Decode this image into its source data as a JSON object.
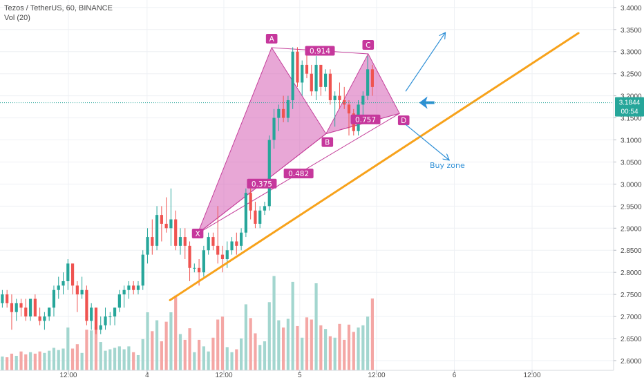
{
  "header": {
    "symbol_line": "Tezos / TetherUS, 60, BINANCE",
    "volume_line": "Vol (20)"
  },
  "colors": {
    "up": "#26a69a",
    "down": "#ef5350",
    "vol_up": "#a3d6cf",
    "vol_down": "#f4a7a5",
    "pattern_fill": "#d65fb4",
    "pattern_stroke": "#c43f9a",
    "pattern_label_bg": "#c6379c",
    "trendline": "#f7a21b",
    "arrow": "#2e8fd6",
    "price_tag": "#26a69a",
    "grid": "#eef0f4"
  },
  "chart_data": {
    "type": "candlestick",
    "y_axis": {
      "ylim": [
        2.578,
        3.417
      ],
      "ticks": [
        2.6,
        2.65,
        2.7,
        2.75,
        2.8,
        2.85,
        2.9,
        2.95,
        3.0,
        3.05,
        3.1,
        3.15,
        3.2,
        3.25,
        3.3,
        3.35,
        3.4
      ],
      "tick_labels": [
        "2.6000",
        "2.6500",
        "2.7000",
        "2.7500",
        "2.8000",
        "2.8500",
        "2.9000",
        "2.9500",
        "3.0000",
        "3.0500",
        "3.1000",
        "3.1500",
        "3.2000",
        "3.2500",
        "3.3000",
        "3.3500",
        "3.4000"
      ]
    },
    "x_axis": {
      "xlim": [
        0,
        131
      ],
      "ticks": [
        {
          "x": 14.6,
          "label": "12:00"
        },
        {
          "x": 31.4,
          "label": "4"
        },
        {
          "x": 47.8,
          "label": "12:00"
        },
        {
          "x": 64.0,
          "label": "5"
        },
        {
          "x": 80.4,
          "label": "12:00"
        },
        {
          "x": 97.0,
          "label": "6"
        },
        {
          "x": 113.6,
          "label": "12:00"
        }
      ]
    },
    "candles": [
      [
        2.73,
        2.76,
        2.72,
        2.75,
        1.9
      ],
      [
        2.75,
        2.76,
        2.72,
        2.73,
        1.8
      ],
      [
        2.73,
        2.75,
        2.67,
        2.71,
        2.3
      ],
      [
        2.71,
        2.74,
        2.69,
        2.73,
        2.0
      ],
      [
        2.73,
        2.74,
        2.7,
        2.72,
        2.6
      ],
      [
        2.72,
        2.74,
        2.69,
        2.7,
        2.2
      ],
      [
        2.7,
        2.74,
        2.69,
        2.74,
        2.5
      ],
      [
        2.74,
        2.75,
        2.7,
        2.7,
        2.3
      ],
      [
        2.7,
        2.72,
        2.68,
        2.69,
        2.6
      ],
      [
        2.69,
        2.71,
        2.67,
        2.7,
        2.4
      ],
      [
        2.7,
        2.72,
        2.69,
        2.72,
        2.7
      ],
      [
        2.72,
        2.77,
        2.7,
        2.76,
        3.1
      ],
      [
        2.76,
        2.79,
        2.74,
        2.77,
        2.8
      ],
      [
        2.77,
        2.8,
        2.75,
        2.78,
        3.0
      ],
      [
        2.78,
        2.83,
        2.76,
        2.82,
        5.9
      ],
      [
        2.82,
        2.82,
        2.75,
        2.77,
        3.0
      ],
      [
        2.77,
        2.78,
        2.71,
        2.75,
        3.6
      ],
      [
        2.75,
        2.79,
        2.74,
        2.76,
        2.4
      ],
      [
        2.76,
        2.77,
        2.68,
        2.69,
        5.6
      ],
      [
        2.69,
        2.73,
        2.67,
        2.72,
        5.5
      ],
      [
        2.72,
        2.72,
        2.66,
        2.67,
        6.0
      ],
      [
        2.67,
        2.7,
        2.66,
        2.68,
        3.9
      ],
      [
        2.68,
        2.72,
        2.67,
        2.7,
        2.7
      ],
      [
        2.7,
        2.71,
        2.68,
        2.7,
        2.9
      ],
      [
        2.7,
        2.72,
        2.68,
        2.72,
        3.1
      ],
      [
        2.72,
        2.76,
        2.71,
        2.75,
        3.3
      ],
      [
        2.75,
        2.77,
        2.72,
        2.76,
        2.9
      ],
      [
        2.76,
        2.78,
        2.74,
        2.77,
        3.3
      ],
      [
        2.77,
        2.78,
        2.75,
        2.76,
        2.5
      ],
      [
        2.76,
        2.78,
        2.75,
        2.77,
        2.1
      ],
      [
        2.77,
        2.85,
        2.76,
        2.84,
        4.3
      ],
      [
        2.84,
        2.9,
        2.82,
        2.88,
        8.0
      ],
      [
        2.88,
        2.92,
        2.84,
        2.86,
        5.4
      ],
      [
        2.86,
        2.95,
        2.85,
        2.93,
        6.9
      ],
      [
        2.93,
        2.95,
        2.87,
        2.91,
        4.0
      ],
      [
        2.91,
        2.97,
        2.89,
        2.9,
        6.7
      ],
      [
        2.9,
        2.99,
        2.86,
        2.92,
        8.0
      ],
      [
        2.92,
        2.94,
        2.85,
        2.86,
        10.3
      ],
      [
        2.86,
        2.9,
        2.84,
        2.88,
        5.0
      ],
      [
        2.88,
        2.9,
        2.83,
        2.86,
        4.2
      ],
      [
        2.86,
        2.87,
        2.78,
        2.81,
        5.8
      ],
      [
        2.81,
        2.82,
        2.8,
        2.81,
        2.5
      ],
      [
        2.81,
        2.83,
        2.77,
        2.8,
        4.2
      ],
      [
        2.8,
        2.86,
        2.79,
        2.85,
        3.3
      ],
      [
        2.85,
        2.89,
        2.84,
        2.88,
        2.6
      ],
      [
        2.88,
        2.89,
        2.85,
        2.86,
        4.5
      ],
      [
        2.86,
        2.95,
        2.82,
        2.84,
        7.0
      ],
      [
        2.84,
        2.86,
        2.8,
        2.83,
        7.4
      ],
      [
        2.83,
        2.87,
        2.81,
        2.85,
        3.2
      ],
      [
        2.85,
        2.88,
        2.84,
        2.87,
        2.5
      ],
      [
        2.87,
        2.89,
        2.84,
        2.86,
        2.9
      ],
      [
        2.86,
        2.9,
        2.85,
        2.89,
        4.4
      ],
      [
        2.89,
        2.99,
        2.88,
        2.98,
        9.1
      ],
      [
        2.98,
        2.99,
        2.92,
        2.94,
        7.2
      ],
      [
        2.94,
        2.96,
        2.9,
        2.91,
        5.1
      ],
      [
        2.91,
        2.95,
        2.9,
        2.94,
        3.5
      ],
      [
        2.94,
        2.96,
        2.93,
        2.95,
        4.0
      ],
      [
        2.95,
        3.11,
        2.94,
        3.1,
        9.4
      ],
      [
        3.1,
        3.17,
        3.08,
        3.15,
        13.0
      ],
      [
        3.15,
        3.18,
        3.12,
        3.17,
        6.9
      ],
      [
        3.17,
        3.2,
        3.14,
        3.15,
        5.9
      ],
      [
        3.15,
        3.2,
        3.14,
        3.19,
        7.1
      ],
      [
        3.19,
        3.31,
        3.17,
        3.3,
        12.2
      ],
      [
        3.3,
        3.31,
        3.22,
        3.23,
        6.1
      ],
      [
        3.23,
        3.28,
        3.2,
        3.27,
        4.5
      ],
      [
        3.27,
        3.3,
        3.24,
        3.25,
        7.3
      ],
      [
        3.25,
        3.27,
        3.2,
        3.21,
        7.0
      ],
      [
        3.21,
        3.29,
        3.19,
        3.27,
        12.0
      ],
      [
        3.27,
        3.27,
        3.2,
        3.22,
        6.2
      ],
      [
        3.22,
        3.26,
        3.21,
        3.25,
        5.7
      ],
      [
        3.25,
        3.26,
        3.18,
        3.19,
        4.7
      ],
      [
        3.19,
        3.21,
        3.13,
        3.2,
        4.5
      ],
      [
        3.2,
        3.23,
        3.17,
        3.19,
        6.4
      ],
      [
        3.19,
        3.22,
        3.17,
        3.18,
        4.2
      ],
      [
        3.18,
        3.19,
        3.11,
        3.16,
        6.3
      ],
      [
        3.16,
        3.17,
        3.11,
        3.12,
        5.3
      ],
      [
        3.12,
        3.19,
        3.11,
        3.18,
        5.9
      ],
      [
        3.18,
        3.21,
        3.14,
        3.2,
        6.2
      ],
      [
        3.2,
        3.29,
        3.19,
        3.26,
        7.4
      ],
      [
        3.26,
        3.27,
        3.2,
        3.22,
        9.9
      ]
    ],
    "pattern": {
      "name": "Harmonic XABCD",
      "points": {
        "X": [
          42.2,
          2.888
        ],
        "A": [
          58.0,
          3.309
        ],
        "B": [
          69.6,
          3.114
        ],
        "C": [
          78.6,
          3.295
        ],
        "D": [
          85.3,
          3.16
        ]
      },
      "ratio_labels": [
        {
          "text": "0.914",
          "between": "A-C"
        },
        {
          "text": "0.757",
          "between": "B-D"
        },
        {
          "text": "0.375",
          "between": "X-B"
        },
        {
          "text": "0.482",
          "between": "X-D"
        }
      ],
      "point_labels": [
        "X",
        "A",
        "B",
        "C",
        "D"
      ]
    },
    "trendline": {
      "start": [
        36.3,
        2.737
      ],
      "end": [
        123.5,
        3.342
      ]
    },
    "arrows": [
      {
        "from": [
          86.6,
          3.21
        ],
        "to": [
          95.0,
          3.342
        ]
      },
      {
        "from": [
          86.6,
          3.135
        ],
        "to": [
          95.8,
          3.055
        ]
      }
    ],
    "annotation": {
      "text": "Buy zone",
      "at": [
        95.5,
        3.037
      ]
    },
    "current_price": {
      "value": 3.1844,
      "label": "3.1844",
      "countdown": "00:54"
    },
    "ylabel": "",
    "xlabel": ""
  }
}
